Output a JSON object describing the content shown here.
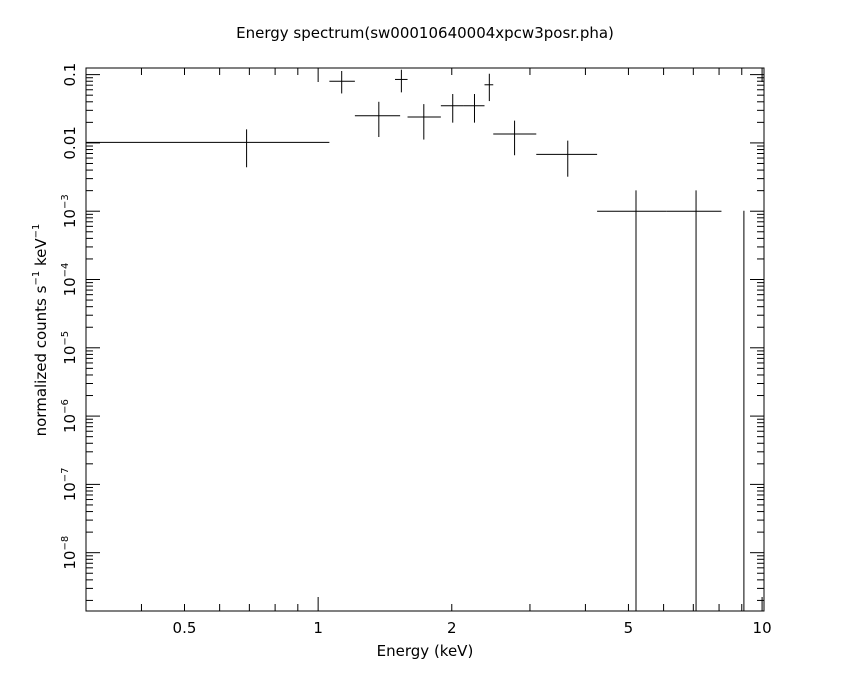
{
  "chart_data": {
    "type": "scatter",
    "title": "Energy spectrum(sw00010640004xpcw3posr.pha)",
    "xlabel": "Energy (keV)",
    "ylabel": {
      "prefix": "normalized counts s",
      "exp1": "−1",
      "middle": " keV",
      "exp2": "−1"
    },
    "xscale": "log",
    "yscale": "log",
    "xlim": [
      0.3,
      10.1
    ],
    "ylim": [
      1.4e-09,
      0.125
    ],
    "x_tick_labels": [
      {
        "value": 0.5,
        "label": "0.5"
      },
      {
        "value": 1,
        "label": "1"
      },
      {
        "value": 2,
        "label": "2"
      },
      {
        "value": 5,
        "label": "5"
      },
      {
        "value": 10,
        "label": "10"
      }
    ],
    "y_tick_labels": [
      {
        "value": 0.1,
        "text": "0.1"
      },
      {
        "value": 0.01,
        "text": "0.01"
      },
      {
        "value": 0.001,
        "base": "10",
        "exp": "−3"
      },
      {
        "value": 0.0001,
        "base": "10",
        "exp": "−4"
      },
      {
        "value": 1e-05,
        "base": "10",
        "exp": "−5"
      },
      {
        "value": 1e-06,
        "base": "10",
        "exp": "−6"
      },
      {
        "value": 1e-07,
        "base": "10",
        "exp": "−7"
      },
      {
        "value": 1e-08,
        "base": "10",
        "exp": "−8"
      }
    ],
    "series": [
      {
        "color": "#000000",
        "points": [
          {
            "x": 0.69,
            "xlo": 0.3,
            "xhi": 1.06,
            "y": 0.0102,
            "ylo": 0.0044,
            "yhi": 0.0158
          },
          {
            "x": 1.13,
            "xlo": 1.06,
            "xhi": 1.21,
            "y": 0.08,
            "ylo": 0.053,
            "yhi": 0.113
          },
          {
            "x": 1.37,
            "xlo": 1.21,
            "xhi": 1.53,
            "y": 0.025,
            "ylo": 0.0122,
            "yhi": 0.04
          },
          {
            "x": 1.54,
            "xlo": 1.49,
            "xhi": 1.59,
            "y": 0.085,
            "ylo": 0.055,
            "yhi": 0.118
          },
          {
            "x": 1.73,
            "xlo": 1.59,
            "xhi": 1.89,
            "y": 0.024,
            "ylo": 0.0112,
            "yhi": 0.037
          },
          {
            "x": 2.01,
            "xlo": 1.89,
            "xhi": 2.13,
            "y": 0.035,
            "ylo": 0.0198,
            "yhi": 0.052
          },
          {
            "x": 2.25,
            "xlo": 2.13,
            "xhi": 2.37,
            "y": 0.035,
            "ylo": 0.0198,
            "yhi": 0.052
          },
          {
            "x": 2.43,
            "xlo": 2.37,
            "xhi": 2.48,
            "y": 0.071,
            "ylo": 0.041,
            "yhi": 0.103
          },
          {
            "x": 2.77,
            "xlo": 2.48,
            "xhi": 3.1,
            "y": 0.0135,
            "ylo": 0.0066,
            "yhi": 0.0212
          },
          {
            "x": 3.65,
            "xlo": 3.1,
            "xhi": 4.25,
            "y": 0.0068,
            "ylo": 0.0032,
            "yhi": 0.0108
          },
          {
            "x": 5.2,
            "xlo": 4.25,
            "xhi": 6.1,
            "y": 0.001,
            "ylo": 1.4e-09,
            "yhi": 0.00202
          },
          {
            "x": 7.1,
            "xlo": 6.1,
            "xhi": 8.1,
            "y": 0.001,
            "ylo": 1.4e-09,
            "yhi": 0.00202
          },
          {
            "x": 9.1,
            "xlo": 9.08,
            "xhi": 9.12,
            "y": 0.001,
            "ylo": 1.4e-09,
            "yhi": 0.001
          }
        ]
      }
    ],
    "grid": false,
    "legend": "none"
  }
}
